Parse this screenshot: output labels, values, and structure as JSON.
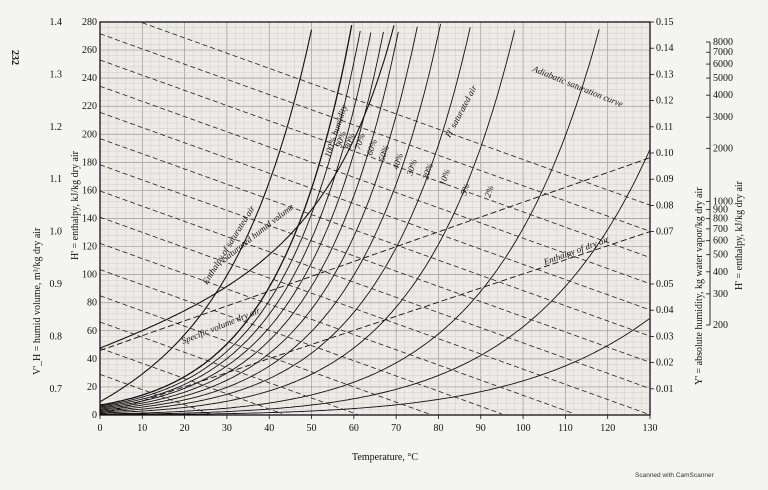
{
  "page_number": "232",
  "footer": "Scanned with CamScanner",
  "chart_data": {
    "type": "line",
    "xlabel": "Temperature, °C",
    "ylabel_left_outer": "V'_H = humid volume, m³/kg dry air",
    "ylabel_left_inner": "H' = enthalpy, kJ/kg dry air",
    "ylabel_right_inner": "Y' = absolute humidity, kg water vapor/kg dry air",
    "ylabel_right_outer": "H' = enthalpy, kJ/kg dry air",
    "xlim": [
      0,
      130
    ],
    "ylim_humidity": [
      0,
      0.15
    ],
    "ylim_enthalpy_left": [
      0,
      280
    ],
    "ylim_volume": [
      0.65,
      1.4
    ],
    "x_ticks": [
      0,
      10,
      20,
      30,
      40,
      50,
      60,
      70,
      80,
      90,
      100,
      110,
      120,
      130
    ],
    "x_tick_labels": [
      "0",
      "10",
      "20",
      "30",
      "40",
      "50",
      "60",
      "70",
      "80",
      "90",
      "100",
      "110",
      "120",
      "130"
    ],
    "enthalpy_left_ticks": [
      0,
      20,
      40,
      60,
      80,
      100,
      120,
      140,
      160,
      180,
      200,
      220,
      240,
      260,
      280
    ],
    "enthalpy_left_tick_labels": [
      "0",
      "20",
      "40",
      "60",
      "80",
      "100",
      "120",
      "140",
      "160",
      "180",
      "200",
      "220",
      "240",
      "260",
      "280"
    ],
    "volume_ticks": [
      0.7,
      0.8,
      0.9,
      1.0,
      1.1,
      1.2,
      1.3,
      1.4
    ],
    "volume_tick_labels": [
      "0.7",
      "0.8",
      "0.9",
      "1.0",
      "1.1",
      "1.2",
      "1.3",
      "1.4"
    ],
    "humidity_ticks": [
      0.01,
      0.02,
      0.03,
      0.04,
      0.05,
      0.07,
      0.08,
      0.09,
      0.1,
      0.11,
      0.12,
      0.13,
      0.14,
      0.15
    ],
    "humidity_tick_labels": [
      "0.01",
      "0.02",
      "0.03",
      "0.04",
      "0.05",
      "0.07",
      "0.08",
      "0.09",
      "0.10",
      "0.11",
      "0.12",
      "0.13",
      "0.14",
      "0.15"
    ],
    "enthalpy_right_ticks": [
      200,
      300,
      400,
      500,
      600,
      700,
      800,
      900,
      1000,
      2000,
      3000,
      4000,
      5000,
      6000,
      7000,
      8000
    ],
    "enthalpy_right_tick_labels": [
      "200",
      "300",
      "400",
      "500",
      "600",
      "700",
      "800",
      "900",
      "1000",
      "2000",
      "3000",
      "4000",
      "5000",
      "6000",
      "7000",
      "8000"
    ],
    "relative_humidity_curves": [
      1.0,
      0.9,
      0.8,
      0.7,
      0.6,
      0.5,
      0.4,
      0.3,
      0.2,
      0.1,
      0.05,
      0.02
    ],
    "rh_labels": [
      "100% humidity",
      "90%",
      "80%",
      "70%",
      "60%",
      "50%",
      "40%",
      "30%",
      "20%",
      "10%",
      "5%",
      "2%"
    ],
    "adiabatic_saturation_lines_y0": [
      0.0,
      0.01,
      0.02,
      0.03,
      0.04,
      0.05,
      0.06,
      0.07,
      0.08,
      0.09,
      0.1,
      0.11,
      0.12,
      0.13,
      0.14
    ],
    "curve_labels": {
      "enthalpy_saturated": "Enthalpy of saturated air",
      "saturated_volume": "Saturated humid volume",
      "specific_volume": "Specific volume dry air",
      "h_saturated": "H' saturated air",
      "adiabatic": "Adiabatic saturation curve",
      "enthalpy_dry": "Enthalpy of dry air"
    },
    "grid": true,
    "legend": "none"
  }
}
